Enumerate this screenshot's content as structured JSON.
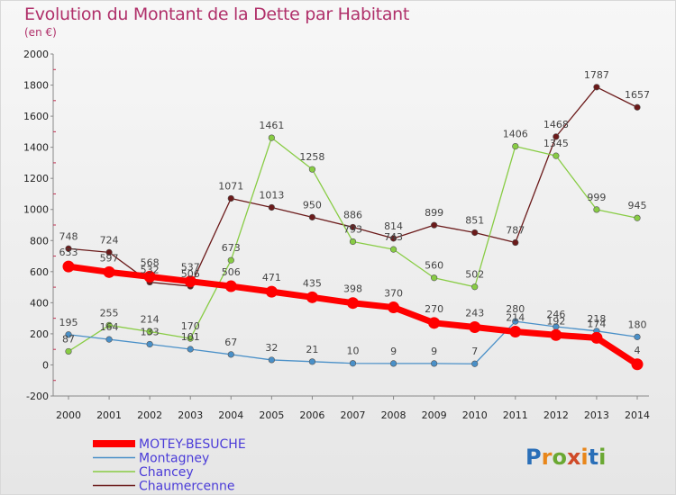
{
  "header": {
    "title": "Evolution du Montant de la Dette par Habitant",
    "unit": "(en €)"
  },
  "logo": {
    "text": "Proxiti"
  },
  "chart_data": {
    "type": "line",
    "title": "Evolution du Montant de la Dette par Habitant",
    "subtitle": "(en €)",
    "xlabel": "",
    "ylabel": "",
    "x": [
      2000,
      2001,
      2002,
      2003,
      2004,
      2005,
      2006,
      2007,
      2008,
      2009,
      2010,
      2011,
      2012,
      2013,
      2014
    ],
    "ylim": [
      -200,
      2000
    ],
    "yticks": [
      -200,
      0,
      200,
      400,
      600,
      800,
      1000,
      1200,
      1400,
      1600,
      1800,
      2000
    ],
    "grid": false,
    "legend_position": "bottom-left",
    "series": [
      {
        "name": "MOTEY-BESUCHE",
        "color": "#ff0000",
        "values": [
          633,
          597,
          568,
          537,
          506,
          471,
          435,
          398,
          370,
          270,
          243,
          214,
          192,
          174,
          4
        ],
        "labels": [
          "633",
          "597",
          "568",
          "537",
          "506",
          "471",
          "435",
          "398",
          "370",
          "270",
          "243",
          "214",
          "192",
          "174",
          "4"
        ]
      },
      {
        "name": "Montagney",
        "color": "#4a90c8",
        "values": [
          195,
          164,
          133,
          101,
          67,
          32,
          21,
          10,
          9,
          9,
          7,
          280,
          246,
          218,
          180
        ],
        "labels": [
          "195",
          "164",
          "133",
          "101",
          "67",
          "32",
          "21",
          "10",
          "9",
          "9",
          "7",
          "280",
          "246",
          "218",
          "180"
        ]
      },
      {
        "name": "Chancey",
        "color": "#88cc44",
        "values": [
          87,
          255,
          214,
          170,
          673,
          1461,
          1258,
          793,
          743,
          560,
          502,
          1406,
          1345,
          999,
          945
        ],
        "labels": [
          "87",
          "255",
          "214",
          "170",
          "673",
          "1461",
          "1258",
          "793",
          "743",
          "560",
          "502",
          "1406",
          "1345",
          "999",
          "945"
        ]
      },
      {
        "name": "Chaumercenne",
        "color": "#6b1a1a",
        "values": [
          748,
          724,
          532,
          506,
          1071,
          1013,
          950,
          886,
          814,
          899,
          851,
          787,
          1468,
          1787,
          1657
        ],
        "labels": [
          "748",
          "724",
          "532",
          "506",
          "1071",
          "1013",
          "950",
          "886",
          "814",
          "899",
          "851",
          "787",
          "1468",
          "1787",
          "1657"
        ]
      }
    ]
  }
}
